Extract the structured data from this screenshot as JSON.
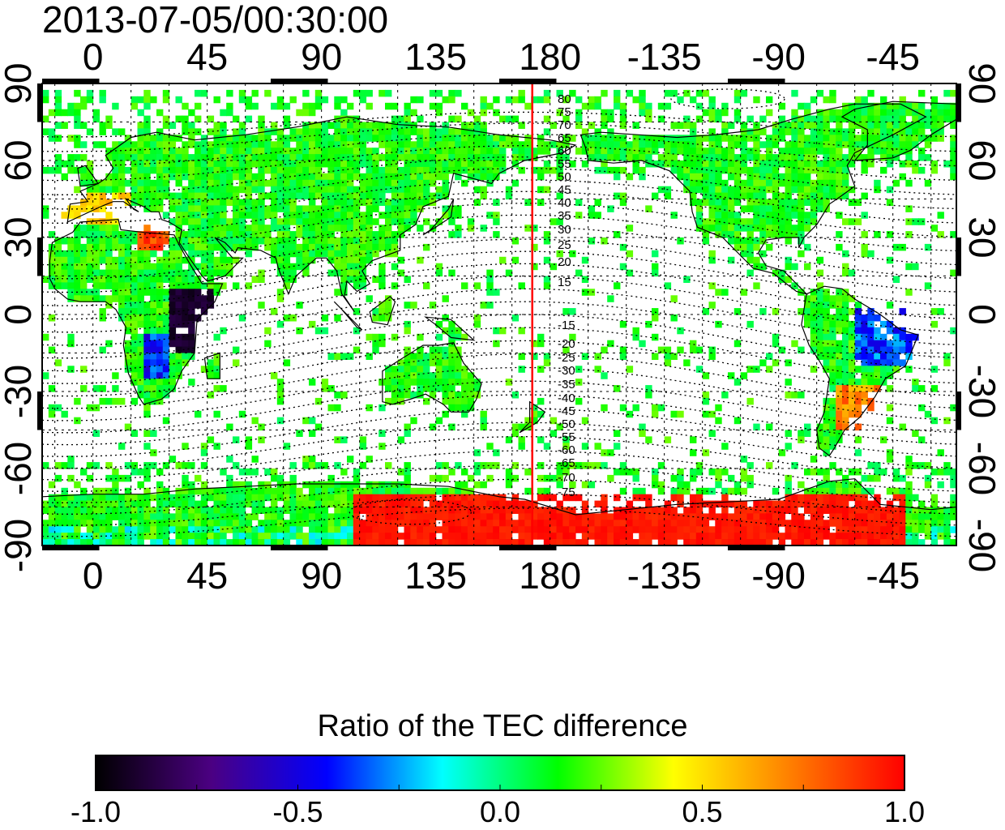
{
  "timestamp": "2013-07-05/00:30:00",
  "chart_data": {
    "type": "heatmap",
    "title": "",
    "colorbar_label": "Ratio of the TEC difference",
    "colorbar_range": [
      -1.0,
      1.0
    ],
    "colorbar_ticks": [
      "-1.0",
      "-0.5",
      "0.0",
      "0.5",
      "1.0"
    ],
    "colorbar_colors": [
      "#000000",
      "#4b0082",
      "#0000ff",
      "#00ffff",
      "#00ff00",
      "#ffff00",
      "#ff8000",
      "#ff0000"
    ],
    "xlabel": "",
    "ylabel": "",
    "x_tick_labels": [
      "0",
      "45",
      "90",
      "135",
      "180",
      "-135",
      "-90",
      "-45"
    ],
    "y_tick_labels_left": [
      "90",
      "60",
      "30",
      "0",
      "-30",
      "-60",
      "-90"
    ],
    "y_tick_labels_right": [
      "90",
      "60",
      "30",
      "0",
      "-30",
      "-60",
      "-90"
    ],
    "xlim": [
      -20,
      340
    ],
    "ylim": [
      -90,
      90
    ],
    "grid": true,
    "vertical_line": {
      "longitude": 173,
      "color": "#ff0000"
    },
    "contour_labels_north": [
      "80",
      "75",
      "70",
      "65",
      "60",
      "55",
      "50",
      "45",
      "40",
      "35",
      "30",
      "25",
      "20",
      "15"
    ],
    "contour_labels_south": [
      "-15",
      "-20",
      "-25",
      "-30",
      "-35",
      "-40",
      "-45",
      "-50",
      "-55",
      "-60",
      "-65",
      "-70",
      "-75"
    ]
  }
}
